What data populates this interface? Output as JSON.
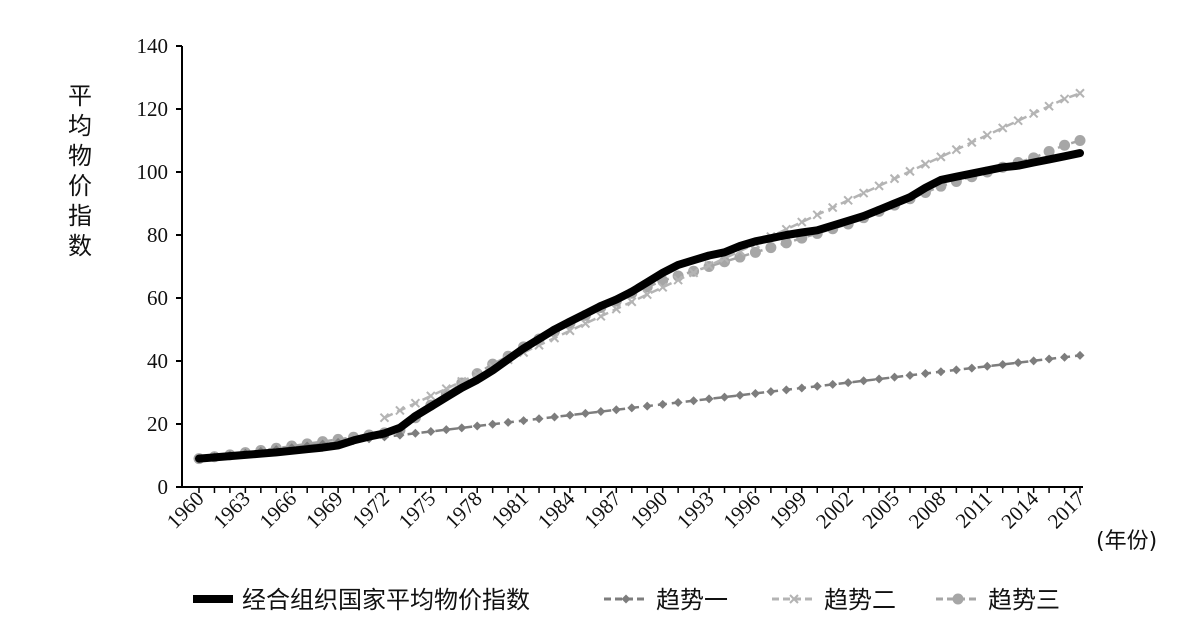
{
  "chart_data": {
    "type": "line",
    "ylabel": "平均物价指数",
    "x_unit_label": "(年份)",
    "ylim": [
      0,
      140
    ],
    "y_ticks": [
      "0",
      "20",
      "40",
      "60",
      "80",
      "100",
      "120",
      "140"
    ],
    "x_start": 1960,
    "x_end": 2017,
    "x_tick_labels": [
      "1960",
      "1963",
      "1966",
      "1969",
      "1972",
      "1975",
      "1978",
      "1981",
      "1984",
      "1987",
      "1990",
      "1993",
      "1996",
      "1999",
      "2002",
      "2005",
      "2008",
      "2011",
      "2014",
      "2017"
    ],
    "grid": false,
    "legend_position": "bottom",
    "series": [
      {
        "name": "经合组织国家平均物价指数",
        "style": "thick-solid",
        "color": "#000000",
        "x": [
          1960,
          1961,
          1962,
          1963,
          1964,
          1965,
          1966,
          1967,
          1968,
          1969,
          1970,
          1971,
          1972,
          1973,
          1974,
          1975,
          1976,
          1977,
          1978,
          1979,
          1980,
          1981,
          1982,
          1983,
          1984,
          1985,
          1986,
          1987,
          1988,
          1989,
          1990,
          1991,
          1992,
          1993,
          1994,
          1995,
          1996,
          1997,
          1998,
          1999,
          2000,
          2001,
          2002,
          2003,
          2004,
          2005,
          2006,
          2007,
          2008,
          2009,
          2010,
          2011,
          2012,
          2013,
          2014,
          2015,
          2016,
          2017
        ],
        "values": [
          9.0,
          9.4,
          9.8,
          10.2,
          10.6,
          11.0,
          11.5,
          12.0,
          12.5,
          13.2,
          14.8,
          16.0,
          17.0,
          18.8,
          22.5,
          25.5,
          28.5,
          31.5,
          34.0,
          37.0,
          40.5,
          44.0,
          47.0,
          50.0,
          52.5,
          55.0,
          57.5,
          59.5,
          62.0,
          65.0,
          68.0,
          70.5,
          72.0,
          73.5,
          74.5,
          76.5,
          78.0,
          79.0,
          80.0,
          80.8,
          81.5,
          83.0,
          84.5,
          86.0,
          88.0,
          90.0,
          92.0,
          95.0,
          97.5,
          98.5,
          99.5,
          100.5,
          101.5,
          102.0,
          103.0,
          104.0,
          105.0,
          106.0
        ]
      },
      {
        "name": "趋势一",
        "style": "dash-diamond",
        "color": "#7d7d7d",
        "x": [
          1960,
          1961,
          1962,
          1963,
          1964,
          1965,
          1966,
          1967,
          1968,
          1969,
          1970,
          1971,
          1972,
          1973,
          1974,
          1975,
          1976,
          1977,
          1978,
          1979,
          1980,
          1981,
          1982,
          1983,
          1984,
          1985,
          1986,
          1987,
          1988,
          1989,
          1990,
          1991,
          1992,
          1993,
          1994,
          1995,
          1996,
          1997,
          1998,
          1999,
          2000,
          2001,
          2002,
          2003,
          2004,
          2005,
          2006,
          2007,
          2008,
          2009,
          2010,
          2011,
          2012,
          2013,
          2014,
          2015,
          2016,
          2017
        ],
        "values": [
          9.0,
          9.57,
          10.15,
          10.72,
          11.3,
          11.87,
          12.45,
          13.02,
          13.6,
          14.17,
          14.75,
          15.32,
          15.9,
          16.47,
          17.05,
          17.62,
          18.2,
          18.77,
          19.35,
          19.92,
          20.5,
          21.07,
          21.65,
          22.22,
          22.8,
          23.37,
          23.95,
          24.52,
          25.1,
          25.67,
          26.25,
          26.82,
          27.4,
          27.97,
          28.55,
          29.12,
          29.7,
          30.27,
          30.85,
          31.42,
          32.0,
          32.57,
          33.15,
          33.72,
          34.3,
          34.87,
          35.45,
          36.02,
          36.6,
          37.17,
          37.75,
          38.32,
          38.9,
          39.47,
          40.05,
          40.62,
          41.2,
          41.77
        ]
      },
      {
        "name": "趋势二",
        "style": "dash-x",
        "color": "#b4b4b4",
        "x": [
          1972,
          1973,
          1974,
          1975,
          1976,
          1977,
          1978,
          1979,
          1980,
          1981,
          1982,
          1983,
          1984,
          1985,
          1986,
          1987,
          1988,
          1989,
          1990,
          1991,
          1992,
          1993,
          1994,
          1995,
          1996,
          1997,
          1998,
          1999,
          2000,
          2001,
          2002,
          2003,
          2004,
          2005,
          2006,
          2007,
          2008,
          2009,
          2010,
          2011,
          2012,
          2013,
          2014,
          2015,
          2016,
          2017
        ],
        "values": [
          22.0,
          24.3,
          26.6,
          28.9,
          31.2,
          33.5,
          35.8,
          38.1,
          40.4,
          42.7,
          45.0,
          47.3,
          49.6,
          51.9,
          54.2,
          56.5,
          58.8,
          61.1,
          63.4,
          65.7,
          68.0,
          70.3,
          72.6,
          74.9,
          77.2,
          79.5,
          81.8,
          84.1,
          86.4,
          88.7,
          91.0,
          93.3,
          95.6,
          97.9,
          100.2,
          102.5,
          104.8,
          107.1,
          109.4,
          111.7,
          114.0,
          116.3,
          118.6,
          120.9,
          123.2,
          125.0
        ]
      },
      {
        "name": "趋势三",
        "style": "dash-circle",
        "color": "#a6a6a6",
        "x": [
          1960,
          1961,
          1962,
          1963,
          1964,
          1965,
          1966,
          1967,
          1968,
          1969,
          1970,
          1971,
          1972,
          1973,
          1974,
          1975,
          1976,
          1977,
          1978,
          1979,
          1980,
          1981,
          1982,
          1983,
          1984,
          1985,
          1986,
          1987,
          1988,
          1989,
          1990,
          1991,
          1992,
          1993,
          1994,
          1995,
          1996,
          1997,
          1998,
          1999,
          2000,
          2001,
          2002,
          2003,
          2004,
          2005,
          2006,
          2007,
          2008,
          2009,
          2010,
          2011,
          2012,
          2013,
          2014,
          2015,
          2016,
          2017
        ],
        "values": [
          9.0,
          9.6,
          10.2,
          10.9,
          11.6,
          12.3,
          13.0,
          13.7,
          14.4,
          15.1,
          15.8,
          16.5,
          17.2,
          18.0,
          22.0,
          26.0,
          29.5,
          33.0,
          36.0,
          39.0,
          41.5,
          44.5,
          47.0,
          49.5,
          52.0,
          54.5,
          57.0,
          59.0,
          61.5,
          63.5,
          65.5,
          67.0,
          68.5,
          70.0,
          71.5,
          73.0,
          74.5,
          76.0,
          77.5,
          79.0,
          80.5,
          82.0,
          83.5,
          85.5,
          87.5,
          89.5,
          91.5,
          93.5,
          95.5,
          97.0,
          98.5,
          100.0,
          101.5,
          103.0,
          104.5,
          106.5,
          108.5,
          110.0
        ]
      }
    ]
  }
}
